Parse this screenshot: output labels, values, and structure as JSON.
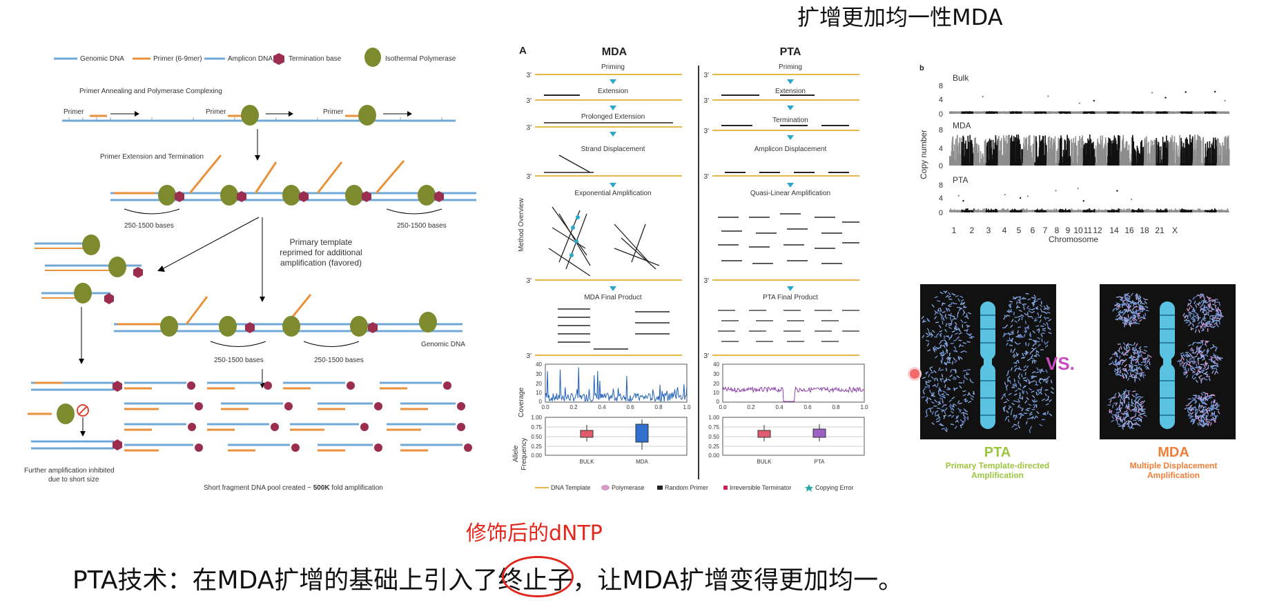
{
  "title": "扩增更加均一性MDA",
  "left_panel": {
    "legend": [
      "Genomic DNA",
      "Primer (6-9mer)",
      "Amplicon DNA",
      "Termination base",
      "Isothermal Polymerase"
    ],
    "step1": "Primer Annealing and Polymerase Complexing",
    "primer": "Primer",
    "step2": "Primer Extension and Termination",
    "bases": "250-1500 bases",
    "reprime": [
      "Primary template",
      "reprimed for additional",
      "amplification (favored)"
    ],
    "genomic": "Genomic DNA",
    "inhibited": [
      "Further amplification inhibited",
      "due to short size"
    ],
    "pool_prefix": "Short fragment DNA pool created ~ ",
    "pool_bold": "500K",
    "pool_suffix": " fold amplification"
  },
  "mid_panel": {
    "letter": "A",
    "mda_header": "MDA",
    "pta_header": "PTA",
    "three_prime": "3'",
    "mda_steps": [
      "Priming",
      "Extension",
      "Prolonged Extension",
      "Strand Displacement",
      "Exponential Amplification",
      "MDA Final Product"
    ],
    "pta_steps": [
      "Priming",
      "Extension",
      "Termination",
      "Amplicon Displacement",
      "Quasi-Linear Amplification",
      "PTA Final Product"
    ],
    "side_label": "Method Overview",
    "coverage_label": "Coverage",
    "allele_label": [
      "Allele",
      "Frequency"
    ],
    "cov_ticks_y": [
      "40",
      "30",
      "20",
      "10",
      "0"
    ],
    "cov_ticks_x": [
      "0.0",
      "0.2",
      "0.4",
      "0.6",
      "0.8",
      "1.0"
    ],
    "af_ticks_y": [
      "1.00",
      "0.75",
      "0.50",
      "0.25",
      "0.00"
    ],
    "mda_box_labels": [
      "BULK",
      "MDA"
    ],
    "pta_box_labels": [
      "BULK",
      "PTA"
    ],
    "legend": [
      "DNA Template",
      "Polymerase",
      "Random Primer",
      "Irreversible Terminator",
      "Copying Error"
    ]
  },
  "right_panel": {
    "letter": "b",
    "tracks": [
      "Bulk",
      "MDA",
      "PTA"
    ],
    "y_ticks": [
      "8",
      "4",
      "0"
    ],
    "ylabel": "Copy number",
    "xlabel": "Chromosome",
    "x_ticks": [
      "1",
      "2",
      "3",
      "4",
      "5",
      "6",
      "7",
      "8",
      "9",
      "10",
      "11",
      "12",
      "14",
      "16",
      "18",
      "21",
      "X"
    ],
    "vs": "VS.",
    "pta_name": "PTA",
    "pta_full": [
      "Primary Template-directed",
      "Amplification"
    ],
    "mda_name": "MDA",
    "mda_full": [
      "Multiple Displacement",
      "Amplification"
    ]
  },
  "annotation": "修饰后的dNTP",
  "bottom": {
    "before": "PTA技术：在MDA扩增的基础上引入了",
    "circled": "终止子",
    "after": "，让MDA扩增变得更加均一。"
  },
  "colors": {
    "genomic_dna": "#6fa8d6",
    "primer": "#e8913a",
    "polymerase": "#7d8a2e",
    "termination": "#9b2d4e",
    "accent_red": "#e2261c",
    "pta_green": "#9bc53d",
    "mda_orange": "#f07e38",
    "vs_purple": "#c94bbf",
    "coverage_mda": "#1f5fb8",
    "coverage_pta": "#8b3fa8"
  }
}
